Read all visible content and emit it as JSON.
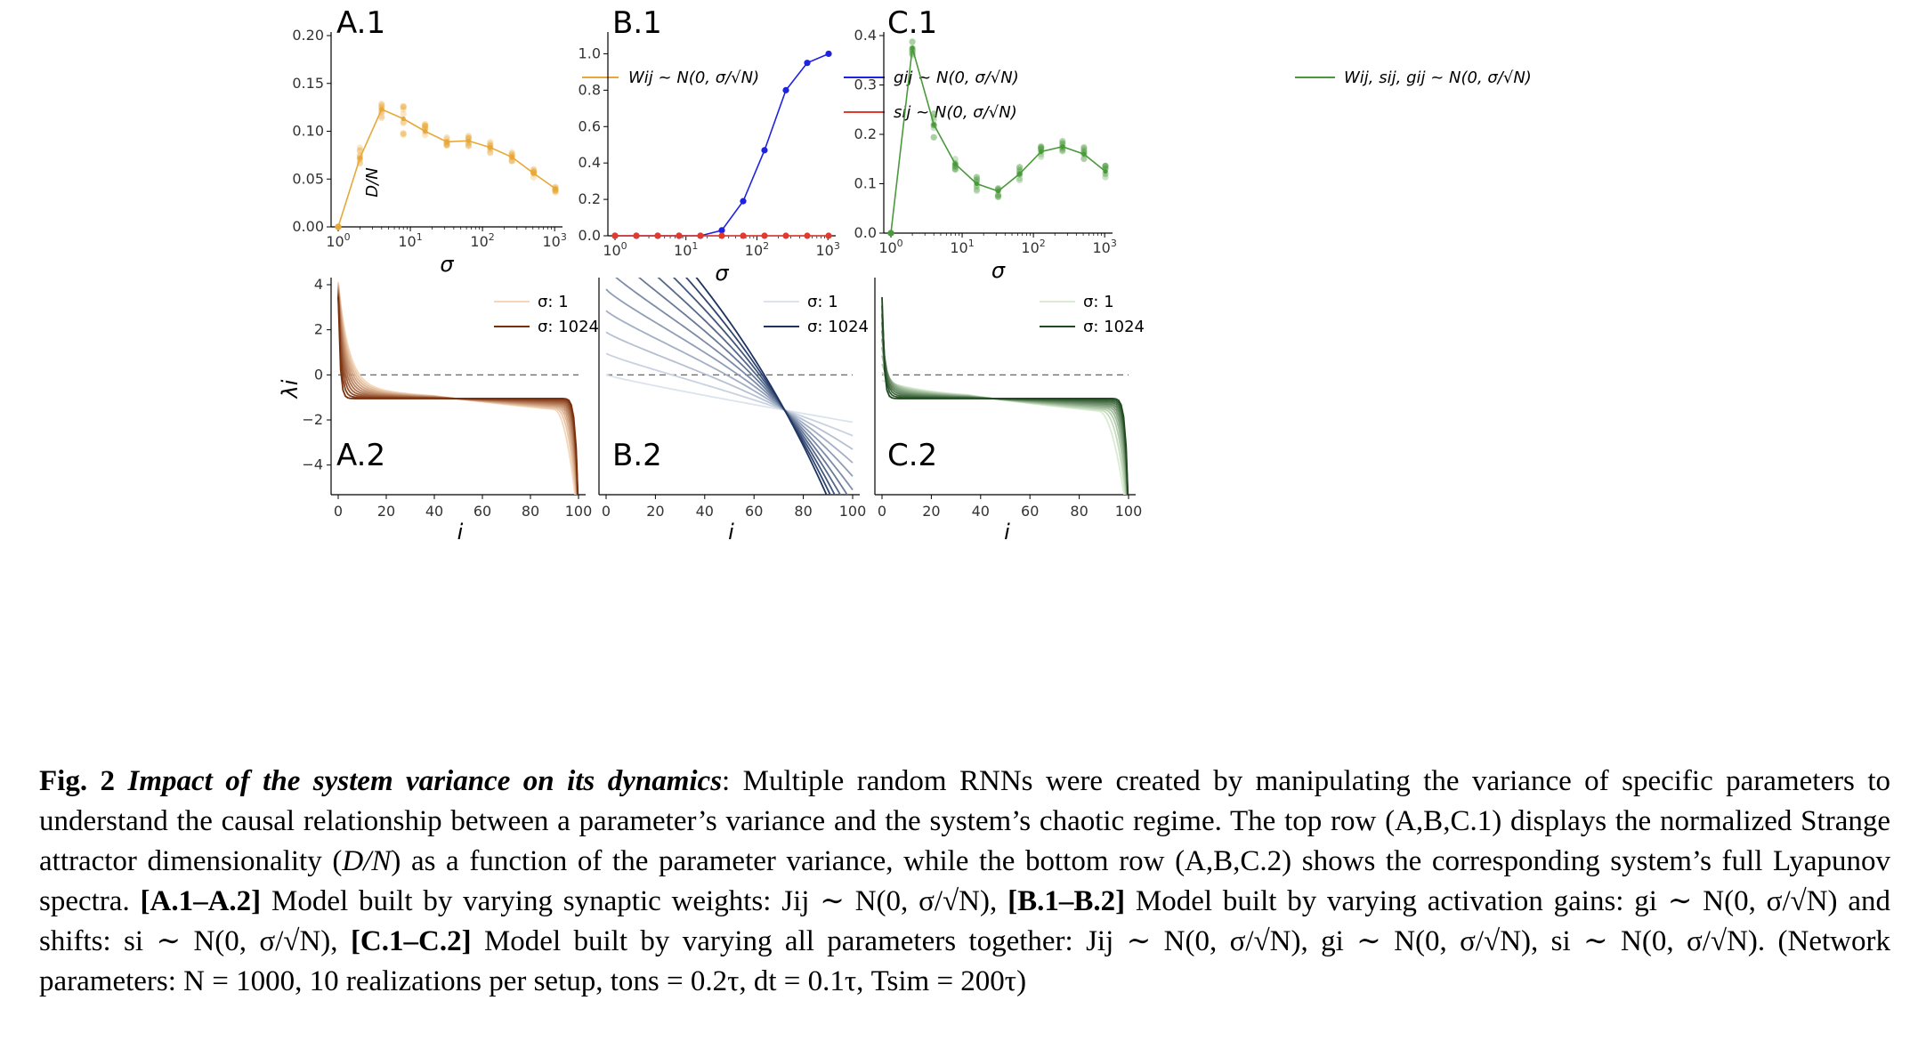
{
  "chart_data": [
    {
      "panel": "A.1",
      "type": "line",
      "color": "#e8a838",
      "x": [
        1,
        2,
        4,
        8,
        16,
        32,
        64,
        128,
        256,
        512,
        1024
      ],
      "y": [
        0.0,
        0.072,
        0.123,
        0.113,
        0.1,
        0.089,
        0.09,
        0.083,
        0.073,
        0.056,
        0.04
      ],
      "scatter_spread": [
        0.0,
        0.012,
        0.01,
        0.018,
        0.01,
        0.006,
        0.006,
        0.006,
        0.005,
        0.005,
        0.004
      ],
      "xscale": "log",
      "xlim": [
        1,
        1024
      ],
      "ylim": [
        0,
        0.2
      ],
      "yticks": [
        "0.00",
        "0.05",
        "0.10",
        "0.15",
        "0.20"
      ],
      "xlabel": "σ",
      "ylabel": "D/N",
      "series": [
        {
          "name": "Wij ~ N(0, σ/√N)"
        }
      ]
    },
    {
      "panel": "B.1",
      "type": "line",
      "x": [
        1,
        2,
        4,
        8,
        16,
        32,
        64,
        128,
        256,
        512,
        1024
      ],
      "series": [
        {
          "name": "gij ~ N(0, σ/√N)",
          "color": "#1f22e0",
          "y": [
            0.0,
            0.0,
            0.0,
            0.0,
            0.0,
            0.03,
            0.19,
            0.47,
            0.8,
            0.95,
            1.0
          ]
        },
        {
          "name": "sij ~ N(0, σ/√N)",
          "color": "#e03b2f",
          "y": [
            0.0,
            0.0,
            0.0,
            0.0,
            0.0,
            0.0,
            0.0,
            0.0,
            0.0,
            0.0,
            0.0
          ]
        }
      ],
      "xscale": "log",
      "xlim": [
        1,
        1024
      ],
      "ylim": [
        0,
        1.1
      ],
      "yticks": [
        "0.0",
        "0.2",
        "0.4",
        "0.6",
        "0.8",
        "1.0"
      ],
      "xlabel": "σ"
    },
    {
      "panel": "C.1",
      "type": "line",
      "color": "#4a9a3c",
      "x": [
        1,
        2,
        4,
        8,
        16,
        32,
        64,
        128,
        256,
        512,
        1024
      ],
      "y": [
        0.0,
        0.375,
        0.22,
        0.14,
        0.1,
        0.085,
        0.12,
        0.165,
        0.175,
        0.16,
        0.125
      ],
      "scatter_spread": [
        0.0,
        0.015,
        0.03,
        0.012,
        0.015,
        0.012,
        0.015,
        0.012,
        0.012,
        0.015,
        0.012
      ],
      "xscale": "log",
      "xlim": [
        1,
        1024
      ],
      "ylim": [
        0,
        0.4
      ],
      "yticks": [
        "0.0",
        "0.1",
        "0.2",
        "0.3",
        "0.4"
      ],
      "xlabel": "σ",
      "series": [
        {
          "name": "Wij, sij, gij ~ N(0, σ/√N)"
        }
      ]
    },
    {
      "panel": "A.2",
      "type": "line",
      "color_start": "#f5d7b8",
      "color_end": "#7a2e0c",
      "sigmas": [
        1,
        2,
        4,
        8,
        16,
        32,
        64,
        128,
        256,
        512,
        1024
      ],
      "xlim": [
        0,
        100
      ],
      "ylim": [
        -5,
        4
      ],
      "xticks": [
        "0",
        "20",
        "40",
        "60",
        "80",
        "100"
      ],
      "yticks": [
        "−4",
        "−2",
        "0",
        "2",
        "4"
      ],
      "xlabel": "i",
      "ylabel": "λi",
      "legend": [
        "σ: 1",
        "σ: 1024"
      ]
    },
    {
      "panel": "B.2",
      "type": "line",
      "color_start": "#dbe3ee",
      "color_end": "#1d3461",
      "sigmas": [
        1,
        2,
        4,
        8,
        16,
        32,
        64,
        128,
        256,
        512,
        1024
      ],
      "xlim": [
        0,
        100
      ],
      "ylim": [
        -5,
        4
      ],
      "xticks": [
        "0",
        "20",
        "40",
        "60",
        "80",
        "100"
      ],
      "xlabel": "i",
      "legend": [
        "σ: 1",
        "σ: 1024"
      ]
    },
    {
      "panel": "C.2",
      "type": "line",
      "color_start": "#d9ecd2",
      "color_end": "#1f4a1f",
      "sigmas": [
        1,
        2,
        4,
        8,
        16,
        32,
        64,
        128,
        256,
        512,
        1024
      ],
      "xlim": [
        0,
        100
      ],
      "ylim": [
        -5,
        4
      ],
      "xticks": [
        "0",
        "20",
        "40",
        "60",
        "80",
        "100"
      ],
      "xlabel": "i",
      "legend": [
        "σ: 1",
        "σ: 1024"
      ]
    }
  ],
  "caption": {
    "fig_label": "Fig.  2",
    "title": "Impact of the system variance on its dynamics",
    "text1": ": Multiple random RNNs were created by manipulating the variance of specific parameters to understand the causal relationship between a parameter’s variance and the system’s chaotic regime. The top row (A,B,C.1) displays the normalized Strange attractor dimensionality (",
    "dn": "D/N",
    "text2": ") as a function of the parameter variance, while the bottom row (A,B,C.2) shows the corresponding system’s full Lyapunov spectra.",
    "a_label": "[A.1–A.2]",
    "a_text": "Model built by varying synaptic weights: Jij ∼ N(0, σ/√N),",
    "b_label": "[B.1–B.2]",
    "b_text": "Model built by varying activation gains: gi ∼ N(0, σ/√N) and shifts: si ∼ N(0, σ/√N),",
    "c_label": "[C.1–C.2]",
    "c_text": "Model built by varying all parameters together: Jij ∼ N(0, σ/√N), gi ∼ N(0, σ/√N), si ∼ N(0, σ/√N).",
    "params": "(Network parameters: N = 1000, 10 realizations per setup, tons = 0.2τ, dt = 0.1τ, Tsim = 200τ)"
  }
}
